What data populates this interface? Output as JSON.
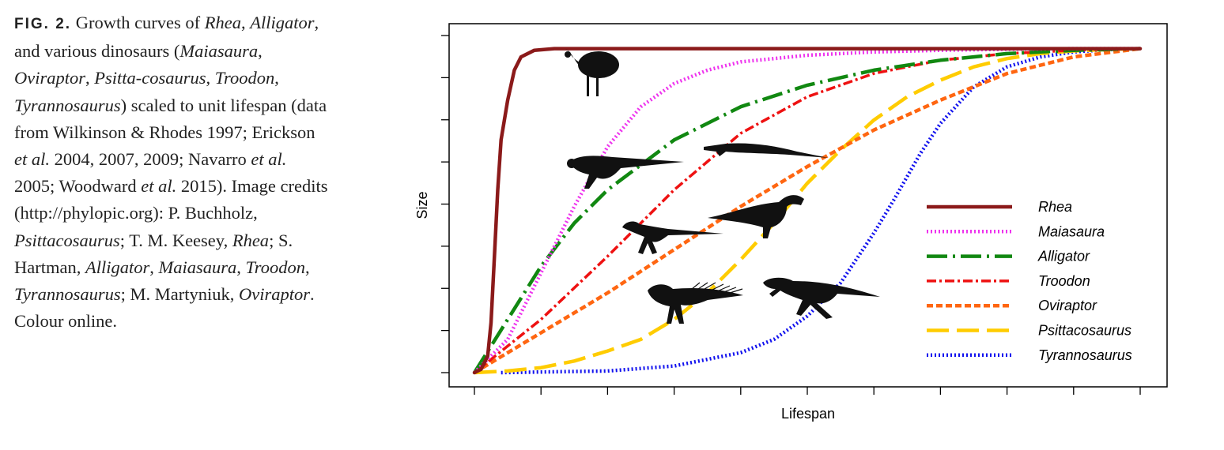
{
  "caption": {
    "fig_label": "FIG. 2.",
    "parts": [
      {
        "t": " Growth curves of "
      },
      {
        "t": "Rhea",
        "i": true
      },
      {
        "t": ", "
      },
      {
        "t": "Alligator",
        "i": true
      },
      {
        "t": ", and various dinosaurs ("
      },
      {
        "t": "Maiasaura",
        "i": true
      },
      {
        "t": ", "
      },
      {
        "t": "Oviraptor",
        "i": true
      },
      {
        "t": ", "
      },
      {
        "t": "Psitta-cosaurus",
        "i": true
      },
      {
        "t": ", "
      },
      {
        "t": "Troodon",
        "i": true
      },
      {
        "t": ", "
      },
      {
        "t": "Tyrannosaurus",
        "i": true
      },
      {
        "t": ") scaled to unit lifespan (data from Wilkinson & Rhodes 1997; Erickson "
      },
      {
        "t": "et al.",
        "i": true
      },
      {
        "t": " 2004, 2007, 2009; Navarro "
      },
      {
        "t": "et al.",
        "i": true
      },
      {
        "t": " 2005; Woodward "
      },
      {
        "t": "et al.",
        "i": true
      },
      {
        "t": " 2015). Image credits (http://phylopic.org): P. Buchholz, "
      },
      {
        "t": "Psittacosaurus",
        "i": true
      },
      {
        "t": "; T. M. Keesey, "
      },
      {
        "t": "Rhea",
        "i": true
      },
      {
        "t": "; S. Hartman, "
      },
      {
        "t": "Alligator",
        "i": true
      },
      {
        "t": ", "
      },
      {
        "t": "Maiasaura",
        "i": true
      },
      {
        "t": ", "
      },
      {
        "t": "Troodon",
        "i": true
      },
      {
        "t": ", "
      },
      {
        "t": "Tyrannosaurus",
        "i": true
      },
      {
        "t": "; M. Martyniuk, "
      },
      {
        "t": "Oviraptor",
        "i": true
      },
      {
        "t": ". Colour online."
      }
    ]
  },
  "chart_data": {
    "type": "line",
    "xlabel": "Lifespan",
    "ylabel": "Size",
    "xlim": [
      0,
      1
    ],
    "ylim": [
      0,
      1.05
    ],
    "x_ticks": 11,
    "y_ticks": 9,
    "tick_labels_shown": false,
    "grid": false,
    "legend_position": "right",
    "series": [
      {
        "name": "Rhea",
        "color": "#8b1a1a",
        "style": "solid",
        "x": [
          0,
          0.01,
          0.02,
          0.025,
          0.03,
          0.035,
          0.04,
          0.05,
          0.06,
          0.07,
          0.09,
          0.12,
          0.2,
          0.5,
          1.0
        ],
        "y": [
          0,
          0.01,
          0.05,
          0.15,
          0.35,
          0.55,
          0.7,
          0.82,
          0.91,
          0.95,
          0.97,
          0.975,
          0.975,
          0.975,
          0.975
        ]
      },
      {
        "name": "Maiasaura",
        "color": "#ee33ee",
        "style": "dotted",
        "x": [
          0,
          0.05,
          0.1,
          0.15,
          0.2,
          0.25,
          0.3,
          0.35,
          0.4,
          0.5,
          0.6,
          0.7,
          0.8,
          0.9,
          1.0
        ],
        "y": [
          0,
          0.1,
          0.3,
          0.5,
          0.68,
          0.8,
          0.87,
          0.91,
          0.935,
          0.955,
          0.965,
          0.97,
          0.973,
          0.975,
          0.975
        ]
      },
      {
        "name": "Alligator",
        "color": "#118811",
        "style": "longdash-dot",
        "x": [
          0,
          0.05,
          0.1,
          0.15,
          0.2,
          0.3,
          0.4,
          0.5,
          0.6,
          0.7,
          0.8,
          0.9,
          1.0
        ],
        "y": [
          0,
          0.16,
          0.32,
          0.45,
          0.55,
          0.7,
          0.8,
          0.865,
          0.91,
          0.94,
          0.96,
          0.97,
          0.975
        ]
      },
      {
        "name": "Troodon",
        "color": "#ee1111",
        "style": "dot-dash",
        "x": [
          0,
          0.1,
          0.2,
          0.3,
          0.4,
          0.5,
          0.6,
          0.7,
          0.8,
          0.9,
          1.0
        ],
        "y": [
          0,
          0.16,
          0.35,
          0.55,
          0.72,
          0.83,
          0.9,
          0.94,
          0.96,
          0.97,
          0.975
        ]
      },
      {
        "name": "Oviraptor",
        "color": "#ff6611",
        "style": "dashed",
        "x": [
          0,
          0.1,
          0.2,
          0.3,
          0.4,
          0.5,
          0.6,
          0.7,
          0.8,
          0.9,
          1.0
        ],
        "y": [
          0,
          0.12,
          0.24,
          0.37,
          0.5,
          0.62,
          0.73,
          0.82,
          0.9,
          0.95,
          0.975
        ]
      },
      {
        "name": "Psittacosaurus",
        "color": "#ffcc00",
        "style": "longdash",
        "x": [
          0,
          0.05,
          0.1,
          0.15,
          0.2,
          0.25,
          0.3,
          0.35,
          0.4,
          0.45,
          0.5,
          0.55,
          0.6,
          0.65,
          0.7,
          0.75,
          0.8,
          0.85,
          0.9,
          0.95,
          1.0
        ],
        "y": [
          0,
          0.005,
          0.015,
          0.035,
          0.065,
          0.1,
          0.16,
          0.24,
          0.34,
          0.45,
          0.57,
          0.67,
          0.76,
          0.83,
          0.88,
          0.92,
          0.945,
          0.96,
          0.968,
          0.972,
          0.975
        ]
      },
      {
        "name": "Tyrannosaurus",
        "color": "#1111ee",
        "style": "dotted",
        "x": [
          0.04,
          0.2,
          0.3,
          0.4,
          0.45,
          0.5,
          0.55,
          0.6,
          0.63,
          0.67,
          0.7,
          0.75,
          0.8,
          0.85,
          0.9,
          0.95,
          1.0
        ],
        "y": [
          0,
          0.005,
          0.02,
          0.06,
          0.1,
          0.17,
          0.27,
          0.42,
          0.52,
          0.66,
          0.75,
          0.86,
          0.92,
          0.95,
          0.965,
          0.972,
          0.975
        ]
      }
    ]
  },
  "silhouettes": [
    {
      "id": "rhea",
      "icon": "rhea-silhouette"
    },
    {
      "id": "maiasaura",
      "icon": "maiasaura-silhouette"
    },
    {
      "id": "alligator",
      "icon": "alligator-silhouette"
    },
    {
      "id": "psittacosaurus",
      "icon": "psittacosaurus-silhouette"
    },
    {
      "id": "troodon",
      "icon": "troodon-silhouette"
    },
    {
      "id": "oviraptor",
      "icon": "oviraptor-silhouette"
    },
    {
      "id": "tyrannosaurus",
      "icon": "tyrannosaurus-silhouette"
    }
  ]
}
